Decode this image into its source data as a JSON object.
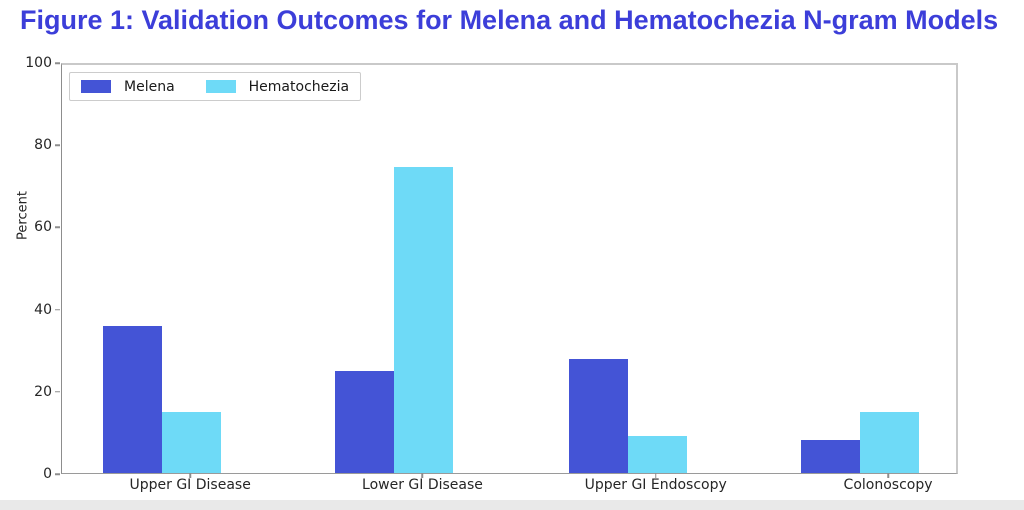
{
  "figure": {
    "title": "Figure 1: Validation Outcomes for Melena and Hematochezia N-gram Models",
    "title_color": "#3c3ed9"
  },
  "chart_data": {
    "type": "bar",
    "title": "Figure 1: Validation Outcomes for Melena and Hematochezia N-gram Models",
    "categories": [
      "Upper GI Disease",
      "Lower GI Disease",
      "Upper GI Endoscopy",
      "Colonoscopy"
    ],
    "series": [
      {
        "name": "Melena",
        "color": "#4454d6",
        "values": [
          36,
          25,
          28,
          8
        ]
      },
      {
        "name": "Hematochezia",
        "color": "#6edaf7",
        "values": [
          15,
          75,
          9,
          15
        ]
      }
    ],
    "xlabel": "",
    "ylabel": "Percent",
    "ylim": [
      0,
      100
    ],
    "yticks": [
      0,
      20,
      40,
      60,
      80,
      100
    ],
    "legend_position": "upper left",
    "grid": false
  }
}
